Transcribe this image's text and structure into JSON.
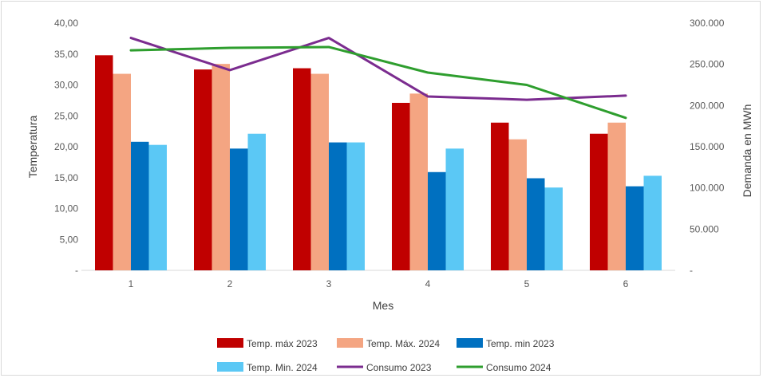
{
  "chart_data": {
    "type": "bar",
    "categories": [
      "1",
      "2",
      "3",
      "4",
      "5",
      "6"
    ],
    "xlabel": "Mes",
    "ylabel": "Temperatura",
    "y2label": "Demanda en MWh",
    "ylim": [
      0,
      40
    ],
    "y2lim": [
      0,
      300000
    ],
    "y_ticks": [
      "-",
      "5,00",
      "10,00",
      "15,00",
      "20,00",
      "25,00",
      "30,00",
      "35,00",
      "40,00"
    ],
    "y2_ticks": [
      "-",
      "50.000",
      "100.000",
      "150.000",
      "200.000",
      "250.000",
      "300.000"
    ],
    "grid": false,
    "legend_position": "bottom",
    "series": [
      {
        "name": "Temp. máx  2023",
        "kind": "bar",
        "axis": "left",
        "color": "#c00000",
        "values": [
          34.8,
          32.5,
          32.7,
          27.1,
          23.9,
          22.1
        ]
      },
      {
        "name": "Temp. Máx. 2024",
        "kind": "bar",
        "axis": "left",
        "color": "#f4a582",
        "values": [
          31.8,
          33.4,
          31.8,
          28.6,
          21.2,
          23.9
        ]
      },
      {
        "name": "Temp. min 2023",
        "kind": "bar",
        "axis": "left",
        "color": "#0070c0",
        "values": [
          20.8,
          19.7,
          20.7,
          15.9,
          14.9,
          13.6
        ]
      },
      {
        "name": "Temp. Min.  2024",
        "kind": "bar",
        "axis": "left",
        "color": "#5bc8f5",
        "values": [
          20.3,
          22.1,
          20.7,
          19.7,
          13.4,
          15.3
        ]
      },
      {
        "name": "Consumo 2023",
        "kind": "line",
        "axis": "right",
        "color": "#7b2c8f",
        "values": [
          282000,
          243000,
          282000,
          211000,
          207000,
          212000
        ]
      },
      {
        "name": "Consumo 2024",
        "kind": "line",
        "axis": "right",
        "color": "#2e9e2e",
        "values": [
          267000,
          270000,
          271000,
          240000,
          225000,
          185000
        ]
      }
    ]
  }
}
